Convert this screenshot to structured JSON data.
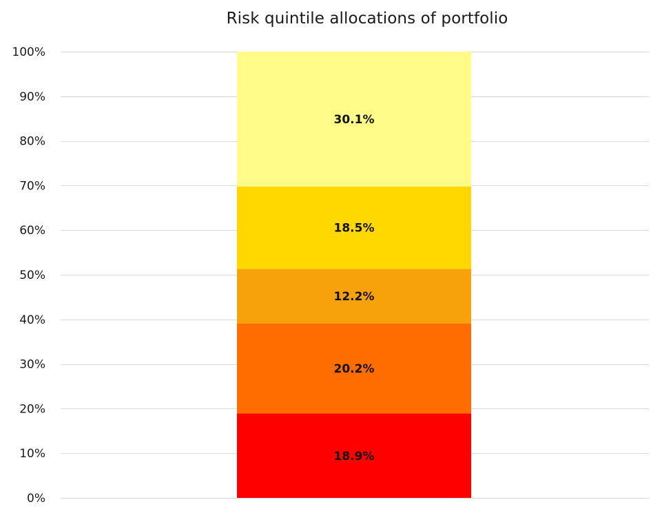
{
  "chart_data": {
    "type": "bar",
    "stacked": true,
    "title": "Risk quintile allocations of portfolio",
    "xlabel": "",
    "ylabel": "",
    "categories": [
      ""
    ],
    "ylim": [
      0,
      100
    ],
    "y_ticks": [
      "0%",
      "10%",
      "20%",
      "30%",
      "40%",
      "50%",
      "60%",
      "70%",
      "80%",
      "90%",
      "100%"
    ],
    "y_tick_values": [
      0,
      10,
      20,
      30,
      40,
      50,
      60,
      70,
      80,
      90,
      100
    ],
    "grid": true,
    "legend": "none",
    "series": [
      {
        "values": [
          18.9
        ],
        "label": "18.9%",
        "color": "#ff0000"
      },
      {
        "values": [
          20.2
        ],
        "label": "20.2%",
        "color": "#ff6d00"
      },
      {
        "values": [
          12.2
        ],
        "label": "12.2%",
        "color": "#f7a20b"
      },
      {
        "values": [
          18.5
        ],
        "label": "18.5%",
        "color": "#ffd800"
      },
      {
        "values": [
          30.1
        ],
        "label": "30.1%",
        "color": "#fffd88"
      }
    ],
    "colors": {
      "gridline": "#d9d9d9",
      "axis_text": "#1a1a1a",
      "data_label": "#111111"
    }
  }
}
